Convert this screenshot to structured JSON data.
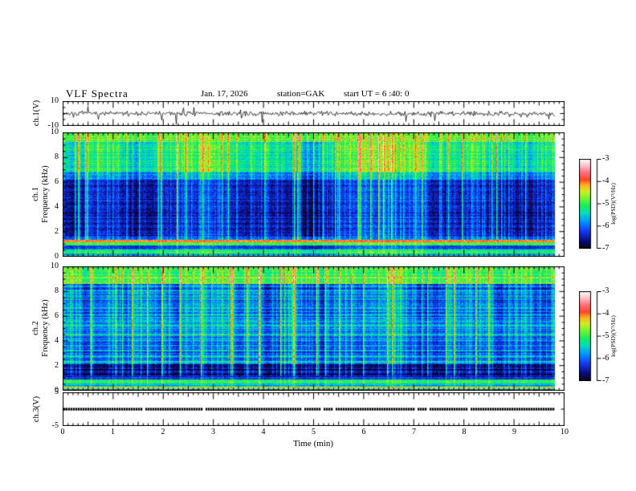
{
  "header": {
    "title": "VLF Spectra",
    "date": "Jan. 17, 2026",
    "station": "station=GAK",
    "start_ut": "start UT =  6 :40: 0"
  },
  "axes": {
    "time": {
      "label": "Time (min)",
      "range": [
        0,
        10
      ],
      "tick_values": [
        0,
        1,
        2,
        3,
        4,
        5,
        6,
        7,
        8,
        9,
        10
      ],
      "minor_step": 0.1
    },
    "ch1_voltage": {
      "label": "ch.1(V)",
      "range": [
        -10,
        10
      ],
      "tick_values": [
        10,
        -10
      ]
    },
    "ch1_frequency": {
      "label_channel": "ch.1",
      "label_axis": "Frequency (kHz)",
      "range": [
        0,
        10
      ],
      "tick_values": [
        10,
        8,
        6,
        4,
        2,
        0
      ],
      "minor_step": 0.5
    },
    "ch2_frequency": {
      "label_channel": "ch.2",
      "label_axis": "Frequency (kHz)",
      "range": [
        0,
        10
      ],
      "tick_values": [
        10,
        8,
        6,
        4,
        2,
        0
      ],
      "minor_step": 0.5
    },
    "ch3_voltage": {
      "label": "ch.3(V)",
      "range": [
        -5,
        5
      ],
      "tick_values": [
        5,
        -5
      ]
    }
  },
  "colorbars": [
    {
      "label": "log(PSD)(V²/Hz)",
      "range": [
        -7,
        -3
      ],
      "tick_values": [
        -3,
        -4,
        -5,
        -6,
        -7
      ]
    },
    {
      "label": "log(PSD)(V²/Hz)",
      "range": [
        -7,
        -3
      ],
      "tick_values": [
        -3,
        -4,
        -5,
        -6,
        -7
      ]
    }
  ],
  "chart_data": [
    {
      "type": "line",
      "name": "ch1_waveform",
      "summary": "Noisy broadband signal centered at 0 V, typical amplitude ±2 V with frequent impulsive spikes, mostly downward, reaching about -8 V",
      "x_range": [
        0,
        9.8
      ],
      "y_range": [
        -10,
        10
      ],
      "sim": {
        "seed": 7,
        "std_v": 1.1,
        "mid_spike_prob": 0.06,
        "mid_spike_v": 2.5,
        "neg_spike_prob": 0.012,
        "neg_spike_max_v": 8,
        "pos_spike_prob": 0.006,
        "pos_spike_max_v": 6
      }
    },
    {
      "type": "heatmap",
      "name": "ch1_spectrogram",
      "summary": "VLF power spectral density vs time; bright green band above ~7 kHz, dark blue 1.6-6.2 kHz pierced by vertical sferic streaks, intense red band near 1.2 kHz, green band near 1 kHz, mixed speckle below",
      "x_range": [
        0,
        9.8
      ],
      "y_range": [
        0,
        10
      ],
      "z_range": [
        -7,
        -3
      ],
      "bands": [
        {
          "f": [
            9.2,
            10.01
          ],
          "psd": -4.9,
          "mod": 0.06
        },
        {
          "f": [
            6.8,
            9.2
          ],
          "psd": -5.3,
          "mod": 0.2
        },
        {
          "f": [
            6.2,
            6.8
          ],
          "psd": -5.9,
          "mod": 0.15
        },
        {
          "f": [
            1.6,
            6.2
          ],
          "psd": -6.55,
          "mod": 0.12
        },
        {
          "f": [
            1.35,
            1.6
          ],
          "psd": -6.15,
          "mod": 0.05
        },
        {
          "f": [
            1.14,
            1.35
          ],
          "psd": -4.05,
          "mod": 0.03
        },
        {
          "f": [
            0.92,
            1.14
          ],
          "psd": -5.0,
          "mod": 0.05
        },
        {
          "f": [
            0.55,
            0.92
          ],
          "psd": -6.15,
          "mod": 0.1
        },
        {
          "f": [
            0.28,
            0.55
          ],
          "psd": -5.15,
          "mod": 0.08
        },
        {
          "f": [
            0.0,
            0.28
          ],
          "psd": -5.7,
          "mod": 0.08
        }
      ],
      "h_lines": [],
      "sim": {
        "seed": 101,
        "streak_big_prob": 0.055,
        "streak_prob": 0.33,
        "streak_min_f": 1.35,
        "row_noise": 0.05,
        "cell_noise": 0.13
      }
    },
    {
      "type": "heatmap",
      "name": "ch2_spectrogram",
      "summary": "Second channel PSD; green band above ~8.6 kHz, blue mid band with narrow horizontal carrier lines between 2-7 kHz, very dark band 1.25-2.1 kHz, bright green-yellow band near 0.7 kHz, red line near 0.2 kHz",
      "x_range": [
        0,
        9.8
      ],
      "y_range": [
        0,
        10
      ],
      "z_range": [
        -7,
        -3
      ],
      "bands": [
        {
          "f": [
            8.6,
            10.01
          ],
          "psd": -5.05,
          "mod": 0.08
        },
        {
          "f": [
            5.6,
            8.6
          ],
          "psd": -6.0,
          "mod": 0.18
        },
        {
          "f": [
            4.6,
            5.6
          ],
          "psd": -5.85,
          "mod": 0.12
        },
        {
          "f": [
            2.1,
            4.6
          ],
          "psd": -6.05,
          "mod": 0.12
        },
        {
          "f": [
            1.25,
            2.1
          ],
          "psd": -6.8,
          "mod": 0.04
        },
        {
          "f": [
            0.9,
            1.25
          ],
          "psd": -6.3,
          "mod": 0.06
        },
        {
          "f": [
            0.55,
            0.9
          ],
          "psd": -4.95,
          "mod": 0.04
        },
        {
          "f": [
            0.3,
            0.55
          ],
          "psd": -5.75,
          "mod": 0.06
        },
        {
          "f": [
            0.13,
            0.3
          ],
          "psd": -4.3,
          "mod": 0.02
        },
        {
          "f": [
            0.0,
            0.13
          ],
          "psd": -6.4,
          "mod": 0.03
        }
      ],
      "h_lines": [
        {
          "f": 2.3,
          "w": 0.06,
          "psd": -5.45
        },
        {
          "f": 2.75,
          "w": 0.05,
          "psd": -5.5
        },
        {
          "f": 3.2,
          "w": 0.05,
          "psd": -5.5
        },
        {
          "f": 3.65,
          "w": 0.05,
          "psd": -5.55
        },
        {
          "f": 4.1,
          "w": 0.05,
          "psd": -5.6
        },
        {
          "f": 4.55,
          "w": 0.05,
          "psd": -5.6
        },
        {
          "f": 5.05,
          "w": 0.05,
          "psd": -5.7
        },
        {
          "f": 6.1,
          "w": 0.05,
          "psd": -5.9
        },
        {
          "f": 7.0,
          "w": 0.05,
          "psd": -5.9
        }
      ],
      "sim": {
        "seed": 202,
        "streak_big_prob": 0.05,
        "streak_prob": 0.3,
        "streak_min_f": 1.25,
        "row_noise": 0.1,
        "cell_noise": 0.13
      }
    },
    {
      "type": "line",
      "name": "ch3_waveform",
      "summary": "Flat trace at 0 V across the full record (no signal on channel 3)",
      "x_range": [
        0,
        9.8
      ],
      "y_range": [
        -5,
        5
      ],
      "value": 0,
      "sim": {
        "seed": 11
      }
    }
  ],
  "palette_hint": "black -> navy -> blue -> cyan -> green -> yellow -> orange -> red -> pink -> white (bottom -7 to top -3)"
}
